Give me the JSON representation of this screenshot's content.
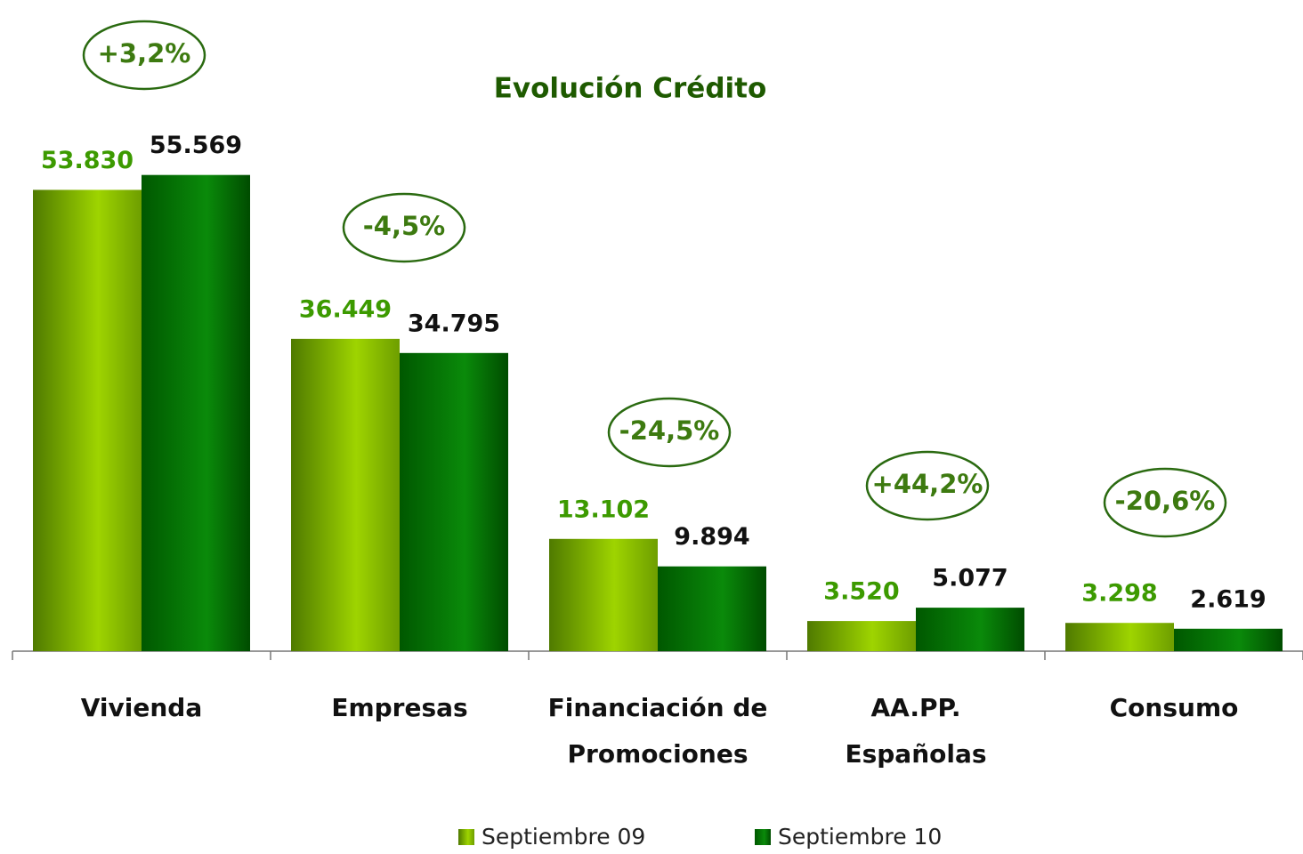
{
  "chart_data": {
    "type": "bar",
    "title": "Evolución Crédito",
    "categories": [
      [
        "Vivienda"
      ],
      [
        "Empresas"
      ],
      [
        "Financiación de",
        "Promociones"
      ],
      [
        "AA.PP.",
        "Españolas"
      ],
      [
        "Consumo"
      ]
    ],
    "series": [
      {
        "name": "Septiembre 09",
        "color": "#8cc400",
        "values": [
          53830,
          36449,
          13102,
          3520,
          3298
        ],
        "value_labels": [
          "53.830",
          "36.449",
          "13.102",
          "3.520",
          "3.298"
        ]
      },
      {
        "name": "Septiembre 10",
        "color": "#0a7a0a",
        "values": [
          55569,
          34795,
          9894,
          5077,
          2619
        ],
        "value_labels": [
          "55.569",
          "34.795",
          "9.894",
          "5.077",
          "2.619"
        ]
      }
    ],
    "annotations": [
      "+3,2%",
      "-4,5%",
      "-24,5%",
      "+44,2%",
      "-20,6%"
    ],
    "ylim": [
      0,
      60000
    ]
  }
}
